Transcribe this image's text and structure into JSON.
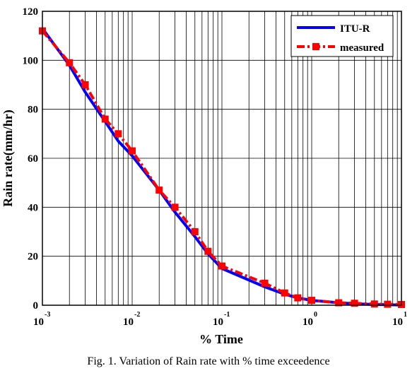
{
  "chart_data": {
    "type": "line",
    "xlabel": "% Time",
    "ylabel": "Rain rate(mm/hr)",
    "x_scale": "log",
    "xlim": [
      0.001,
      10
    ],
    "ylim": [
      0,
      120
    ],
    "x_ticks": [
      {
        "value": 0.001,
        "base": "10",
        "exp": "-3"
      },
      {
        "value": 0.01,
        "base": "10",
        "exp": "-2"
      },
      {
        "value": 0.1,
        "base": "10",
        "exp": "-1"
      },
      {
        "value": 1,
        "base": "10",
        "exp": "0"
      },
      {
        "value": 10,
        "base": "10",
        "exp": "1"
      }
    ],
    "y_ticks": [
      0,
      20,
      40,
      60,
      80,
      100,
      120
    ],
    "grid": true,
    "legend_position": "top-right",
    "series": [
      {
        "name": "ITU-R",
        "color": "#0000ff",
        "style": "solid",
        "x": [
          0.001,
          0.002,
          0.003,
          0.005,
          0.007,
          0.01,
          0.02,
          0.03,
          0.05,
          0.07,
          0.1,
          0.3,
          0.5,
          0.7,
          1,
          2,
          3,
          5,
          7,
          10
        ],
        "y": [
          113,
          98,
          87,
          75,
          67,
          61,
          47,
          38,
          28,
          21,
          15,
          7.5,
          4.5,
          3,
          2,
          1,
          0.6,
          0.3,
          0.2,
          0.1
        ]
      },
      {
        "name": "measured",
        "color": "#ff0000",
        "style": "dash-dot",
        "x": [
          0.001,
          0.002,
          0.003,
          0.005,
          0.007,
          0.01,
          0.02,
          0.03,
          0.05,
          0.07,
          0.1,
          0.3,
          0.5,
          0.7,
          1,
          2,
          3,
          5,
          7,
          10
        ],
        "y": [
          112,
          99,
          90,
          76,
          70,
          63,
          47,
          40,
          30,
          22,
          16,
          9,
          5,
          3,
          2,
          1,
          0.8,
          0.5,
          0.4,
          0.3
        ]
      }
    ]
  },
  "caption": "Fig. 1. Variation of Rain rate with % time exceedence"
}
